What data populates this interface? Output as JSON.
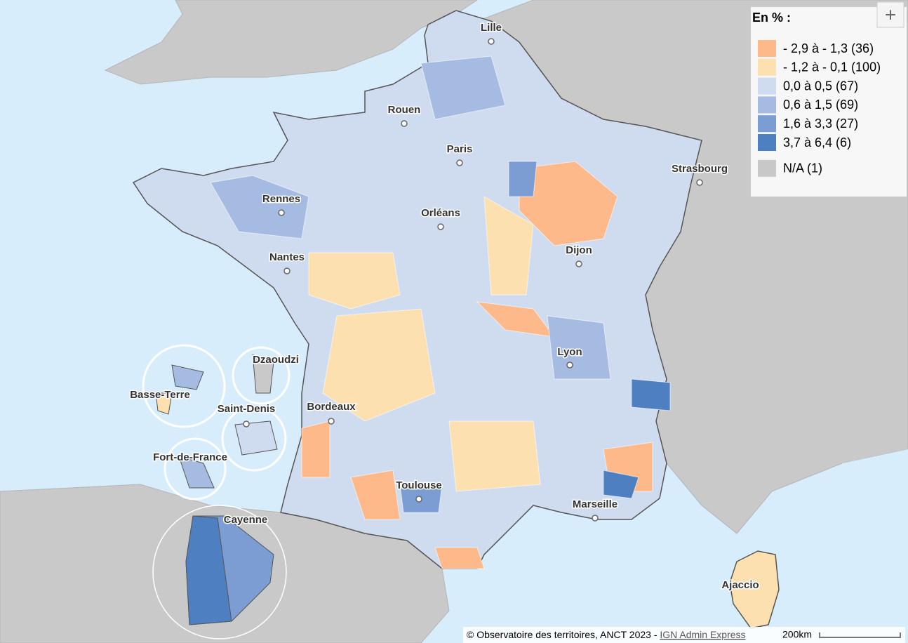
{
  "map": {
    "cities": [
      "Lille",
      "Rouen",
      "Paris",
      "Strasbourg",
      "Rennes",
      "Orléans",
      "Nantes",
      "Dijon",
      "Lyon",
      "Dzaoudzi",
      "Basse-Terre",
      "Saint-Denis",
      "Bordeaux",
      "Fort-de-France",
      "Toulouse",
      "Marseille",
      "Cayenne",
      "Ajaccio"
    ]
  },
  "legend": {
    "title": "En % :",
    "items": [
      {
        "label": "- 2,9 à - 1,3 (36)",
        "color": "#fdb98a"
      },
      {
        "label": "- 1,2 à - 0,1 (100)",
        "color": "#fde0b0"
      },
      {
        "label": "0,0 à 0,5 (67)",
        "color": "#cfdbef"
      },
      {
        "label": "0,6 à 1,5 (69)",
        "color": "#a5bbe2"
      },
      {
        "label": "1,6 à 3,3 (27)",
        "color": "#7c9dd3"
      },
      {
        "label": "3,7 à 6,4 (6)",
        "color": "#4e7fc0"
      },
      {
        "label": "N/A (1)",
        "color": "#c8c8c8"
      }
    ]
  },
  "zoom_button": "+",
  "attribution": {
    "text": "© Observatoire des territoires, ANCT 2023 - ",
    "link": "IGN Admin Express",
    "scale": "200km"
  }
}
